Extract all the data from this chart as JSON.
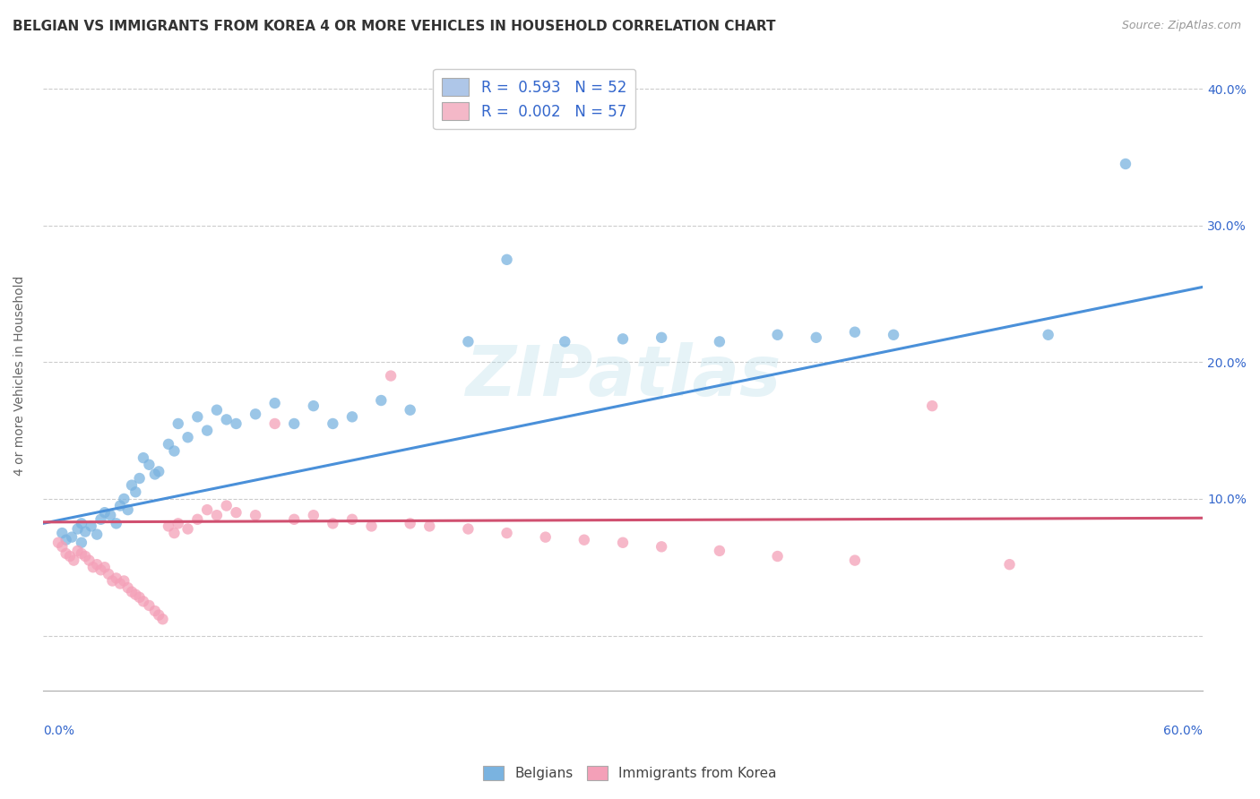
{
  "title": "BELGIAN VS IMMIGRANTS FROM KOREA 4 OR MORE VEHICLES IN HOUSEHOLD CORRELATION CHART",
  "source": "Source: ZipAtlas.com",
  "ylabel": "4 or more Vehicles in Household",
  "legend_entry1": {
    "label": "R =  0.593   N = 52",
    "color": "#aec6e8"
  },
  "legend_entry2": {
    "label": "R =  0.002   N = 57",
    "color": "#f4b8c8"
  },
  "r_value_color": "#3366cc",
  "belgians_color": "#7ab3e0",
  "korea_color": "#f4a0b8",
  "trend_belgian_color": "#4a90d9",
  "trend_korea_color": "#d05070",
  "watermark_text": "ZIPatlas",
  "xlim": [
    0.0,
    0.6
  ],
  "ylim": [
    -0.04,
    0.42
  ],
  "yticks": [
    0.0,
    0.1,
    0.2,
    0.3,
    0.4
  ],
  "yticklabels_right": [
    "",
    "10.0%",
    "20.0%",
    "30.0%",
    "40.0%"
  ],
  "belgians_x": [
    0.01,
    0.012,
    0.015,
    0.018,
    0.02,
    0.02,
    0.022,
    0.025,
    0.028,
    0.03,
    0.032,
    0.035,
    0.038,
    0.04,
    0.042,
    0.044,
    0.046,
    0.048,
    0.05,
    0.052,
    0.055,
    0.058,
    0.06,
    0.065,
    0.068,
    0.07,
    0.075,
    0.08,
    0.085,
    0.09,
    0.095,
    0.1,
    0.11,
    0.12,
    0.13,
    0.14,
    0.15,
    0.16,
    0.175,
    0.19,
    0.22,
    0.24,
    0.27,
    0.3,
    0.32,
    0.35,
    0.38,
    0.4,
    0.42,
    0.44,
    0.52,
    0.56
  ],
  "belgians_y": [
    0.075,
    0.07,
    0.072,
    0.078,
    0.068,
    0.082,
    0.076,
    0.08,
    0.074,
    0.085,
    0.09,
    0.088,
    0.082,
    0.095,
    0.1,
    0.092,
    0.11,
    0.105,
    0.115,
    0.13,
    0.125,
    0.118,
    0.12,
    0.14,
    0.135,
    0.155,
    0.145,
    0.16,
    0.15,
    0.165,
    0.158,
    0.155,
    0.162,
    0.17,
    0.155,
    0.168,
    0.155,
    0.16,
    0.172,
    0.165,
    0.215,
    0.275,
    0.215,
    0.217,
    0.218,
    0.215,
    0.22,
    0.218,
    0.222,
    0.22,
    0.22,
    0.345
  ],
  "korea_x": [
    0.008,
    0.01,
    0.012,
    0.014,
    0.016,
    0.018,
    0.02,
    0.022,
    0.024,
    0.026,
    0.028,
    0.03,
    0.032,
    0.034,
    0.036,
    0.038,
    0.04,
    0.042,
    0.044,
    0.046,
    0.048,
    0.05,
    0.052,
    0.055,
    0.058,
    0.06,
    0.062,
    0.065,
    0.068,
    0.07,
    0.075,
    0.08,
    0.085,
    0.09,
    0.095,
    0.1,
    0.11,
    0.12,
    0.13,
    0.14,
    0.15,
    0.16,
    0.17,
    0.18,
    0.19,
    0.2,
    0.22,
    0.24,
    0.26,
    0.28,
    0.3,
    0.32,
    0.35,
    0.38,
    0.42,
    0.46,
    0.5
  ],
  "korea_y": [
    0.068,
    0.065,
    0.06,
    0.058,
    0.055,
    0.062,
    0.06,
    0.058,
    0.055,
    0.05,
    0.052,
    0.048,
    0.05,
    0.045,
    0.04,
    0.042,
    0.038,
    0.04,
    0.035,
    0.032,
    0.03,
    0.028,
    0.025,
    0.022,
    0.018,
    0.015,
    0.012,
    0.08,
    0.075,
    0.082,
    0.078,
    0.085,
    0.092,
    0.088,
    0.095,
    0.09,
    0.088,
    0.155,
    0.085,
    0.088,
    0.082,
    0.085,
    0.08,
    0.19,
    0.082,
    0.08,
    0.078,
    0.075,
    0.072,
    0.07,
    0.068,
    0.065,
    0.062,
    0.058,
    0.055,
    0.168,
    0.052
  ],
  "grid_color": "#cccccc",
  "background_color": "#ffffff",
  "title_fontsize": 11,
  "axis_label_fontsize": 10,
  "tick_fontsize": 10
}
